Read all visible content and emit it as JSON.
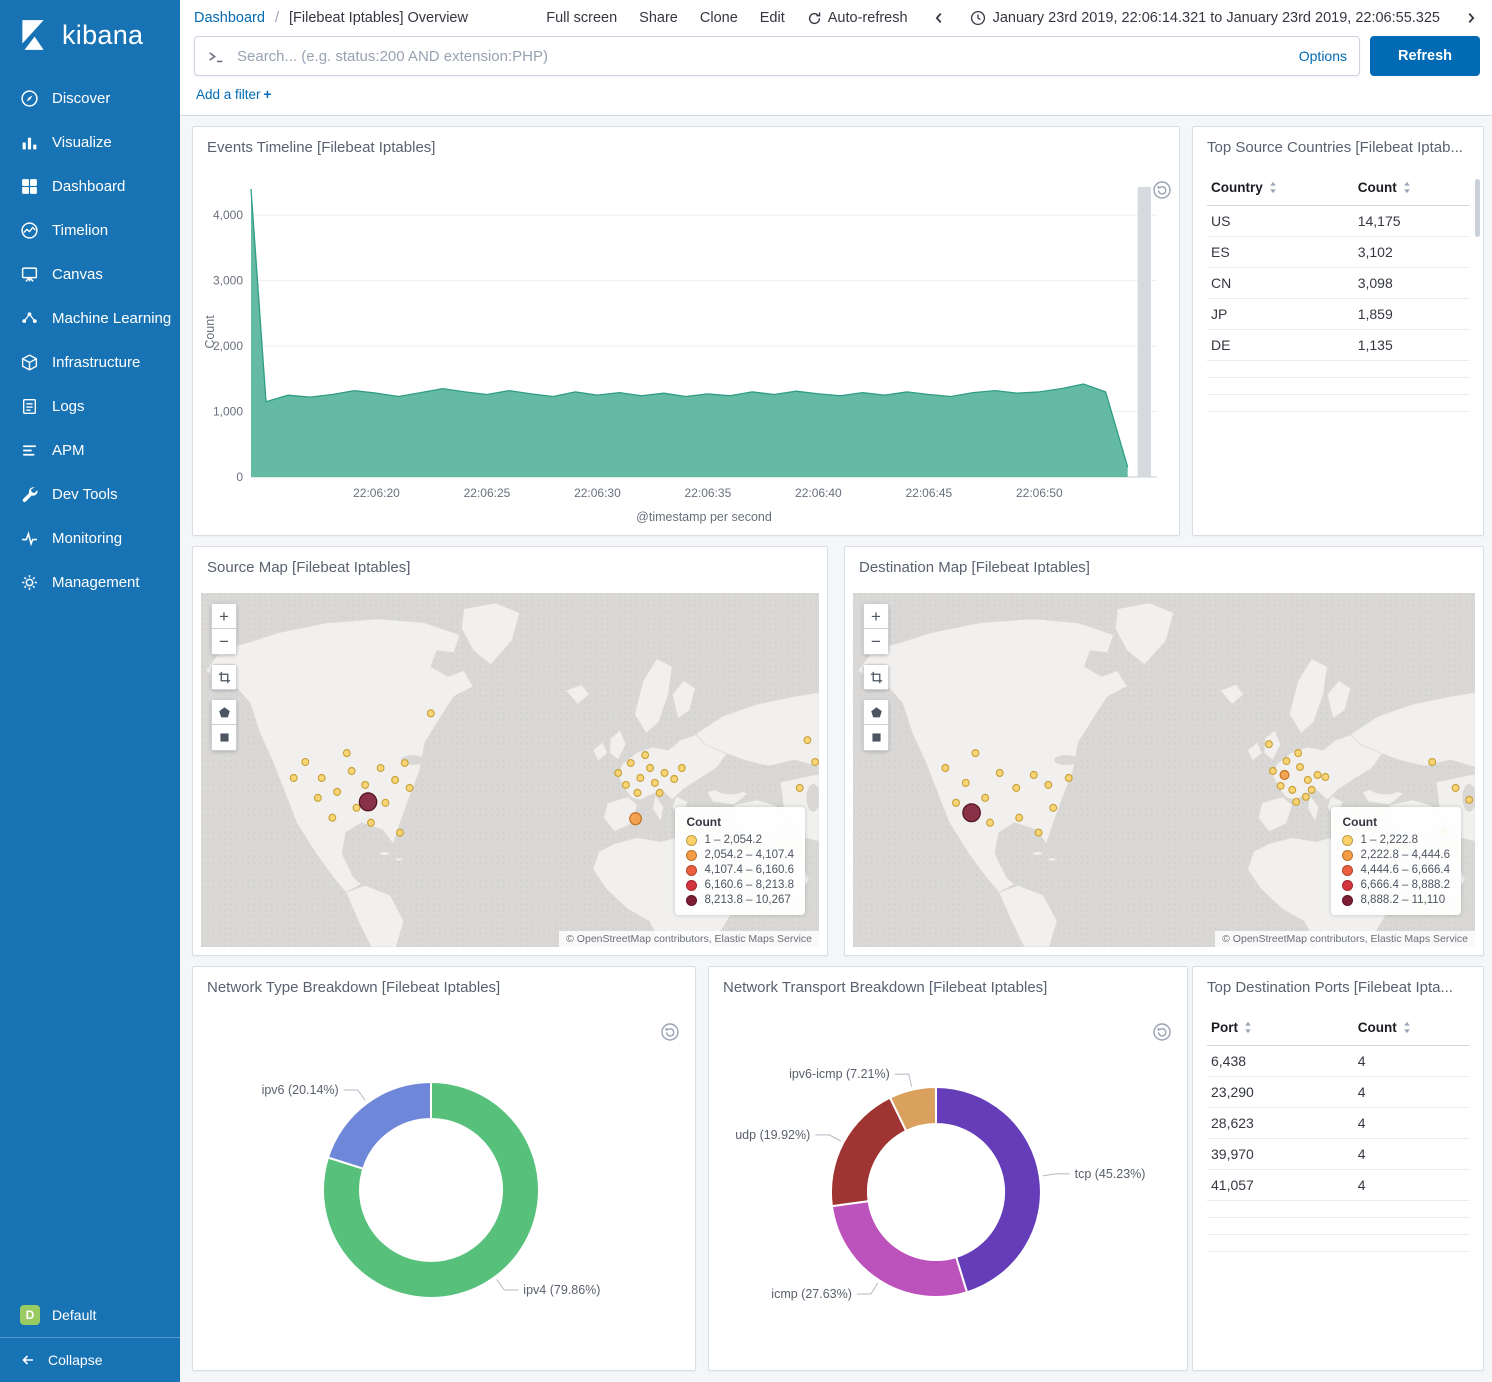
{
  "colors": {
    "sidebar_bg": "#1873b4",
    "primary_blue": "#006bb4",
    "link_blue": "#006bb4",
    "area_fill": "#54b399",
    "dashboard_bg": "#f5f6f8",
    "panel_border": "#d8dde6"
  },
  "sidebar": {
    "logo_text": "kibana",
    "items": [
      {
        "label": "Discover",
        "icon": "compass-icon"
      },
      {
        "label": "Visualize",
        "icon": "bar-chart-icon"
      },
      {
        "label": "Dashboard",
        "icon": "dashboard-grid-icon"
      },
      {
        "label": "Timelion",
        "icon": "timelion-icon"
      },
      {
        "label": "Canvas",
        "icon": "canvas-icon"
      },
      {
        "label": "Machine Learning",
        "icon": "ml-icon"
      },
      {
        "label": "Infrastructure",
        "icon": "infrastructure-icon"
      },
      {
        "label": "Logs",
        "icon": "logs-icon"
      },
      {
        "label": "APM",
        "icon": "apm-icon"
      },
      {
        "label": "Dev Tools",
        "icon": "wrench-icon"
      },
      {
        "label": "Monitoring",
        "icon": "pulse-icon"
      },
      {
        "label": "Management",
        "icon": "gear-icon"
      }
    ],
    "space": {
      "initial": "D",
      "label": "Default"
    },
    "collapse_label": "Collapse"
  },
  "header": {
    "breadcrumb_root": "Dashboard",
    "breadcrumb_separator": "/",
    "breadcrumb_page": "[Filebeat Iptables] Overview",
    "actions": [
      "Full screen",
      "Share",
      "Clone",
      "Edit"
    ],
    "auto_refresh_label": "Auto-refresh",
    "time_range": "January 23rd 2019, 22:06:14.321 to January 23rd 2019, 22:06:55.325"
  },
  "search": {
    "placeholder": "Search... (e.g. status:200 AND extension:PHP)",
    "options_label": "Options",
    "refresh_label": "Refresh"
  },
  "filters": {
    "add_label": "Add a filter",
    "plus": "+"
  },
  "panels": {
    "events_timeline": {
      "title": "Events Timeline [Filebeat Iptables]",
      "chart": {
        "type": "area",
        "color": "#54b399",
        "stroke": "#2f9d85",
        "ylabel": "Count",
        "xlabel": "@timestamp per second",
        "ytick_values": [
          0,
          1000,
          2000,
          3000,
          4000
        ],
        "ytick_labels": [
          "0",
          "1,000",
          "2,000",
          "3,000",
          "4,000"
        ],
        "ymax": 4430,
        "time_start_s": 14.321,
        "time_end_s": 55.325,
        "bucket_start_s": 14,
        "bucket_interval_s": 1,
        "xticks": [
          {
            "s": 20,
            "label": "22:06:20"
          },
          {
            "s": 25,
            "label": "22:06:25"
          },
          {
            "s": 30,
            "label": "22:06:30"
          },
          {
            "s": 35,
            "label": "22:06:35"
          },
          {
            "s": 40,
            "label": "22:06:40"
          },
          {
            "s": 45,
            "label": "22:06:45"
          },
          {
            "s": 50,
            "label": "22:06:50"
          }
        ],
        "values": [
          4400,
          1150,
          1250,
          1220,
          1260,
          1320,
          1280,
          1230,
          1290,
          1350,
          1300,
          1260,
          1320,
          1270,
          1230,
          1300,
          1250,
          1290,
          1240,
          1280,
          1230,
          1270,
          1240,
          1300,
          1260,
          1310,
          1270,
          1240,
          1290,
          1250,
          1300,
          1260,
          1230,
          1290,
          1320,
          1280,
          1300,
          1350,
          1420,
          1300,
          150
        ],
        "partial_bucket_band": [
          54.45,
          55.05
        ]
      }
    },
    "top_source_countries": {
      "title": "Top Source Countries [Filebeat Iptab...",
      "columns": [
        "Country",
        "Count"
      ],
      "rows": [
        [
          "US",
          "14,175"
        ],
        [
          "ES",
          "3,102"
        ],
        [
          "CN",
          "3,098"
        ],
        [
          "JP",
          "1,859"
        ],
        [
          "DE",
          "1,135"
        ]
      ]
    },
    "source_map": {
      "title": "Source Map [Filebeat Iptables]",
      "legend_title": "Count",
      "legend": [
        {
          "label": "1 – 2,054.2",
          "color": "#fbd268"
        },
        {
          "label": "2,054.2 – 4,107.4",
          "color": "#f59b43"
        },
        {
          "label": "4,107.4 – 6,160.6",
          "color": "#ec5e40"
        },
        {
          "label": "6,160.6 – 8,213.8",
          "color": "#d4343d"
        },
        {
          "label": "8,213.8 – 10,267",
          "color": "#7d1d34"
        }
      ],
      "attribution": "© OpenStreetMap contributors, Elastic Maps Service",
      "markers": [
        [
          108,
          170,
          3.5,
          0
        ],
        [
          125,
          186,
          3.5,
          0
        ],
        [
          141,
          200,
          3.5,
          0
        ],
        [
          156,
          179,
          3.5,
          0
        ],
        [
          170,
          193,
          3.5,
          0
        ],
        [
          186,
          176,
          3.5,
          0
        ],
        [
          201,
          188,
          3.5,
          0
        ],
        [
          161,
          216,
          3.5,
          0
        ],
        [
          136,
          226,
          3.5,
          0
        ],
        [
          191,
          211,
          3.5,
          0
        ],
        [
          211,
          171,
          3.5,
          0
        ],
        [
          121,
          206,
          3.5,
          0
        ],
        [
          176,
          231,
          3.5,
          0
        ],
        [
          151,
          161,
          3.5,
          0
        ],
        [
          216,
          196,
          3.5,
          0
        ],
        [
          96,
          186,
          3.5,
          0
        ],
        [
          206,
          241,
          3.5,
          0
        ],
        [
          238,
          121,
          3.5,
          0
        ],
        [
          173,
          210,
          9,
          4
        ],
        [
          432,
          181,
          3.5,
          0
        ],
        [
          445,
          171,
          3.5,
          0
        ],
        [
          455,
          186,
          3.5,
          0
        ],
        [
          465,
          176,
          3.5,
          0
        ],
        [
          470,
          191,
          3.5,
          0
        ],
        [
          452,
          201,
          3.5,
          0
        ],
        [
          480,
          181,
          3.5,
          0
        ],
        [
          440,
          193,
          3.5,
          0
        ],
        [
          460,
          163,
          3.5,
          0
        ],
        [
          475,
          201,
          3.5,
          0
        ],
        [
          490,
          187,
          3.5,
          0
        ],
        [
          498,
          176,
          3.5,
          0
        ],
        [
          450,
          227,
          6,
          1
        ],
        [
          628,
          148,
          3.5,
          0
        ],
        [
          636,
          170,
          3.5,
          0
        ],
        [
          620,
          196,
          3.5,
          0
        ]
      ]
    },
    "destination_map": {
      "title": "Destination Map [Filebeat Iptables]",
      "legend_title": "Count",
      "legend": [
        {
          "label": "1 – 2,222.8",
          "color": "#fbd268"
        },
        {
          "label": "2,222.8 – 4,444.6",
          "color": "#f59b43"
        },
        {
          "label": "4,444.6 – 6,666.4",
          "color": "#ec5e40"
        },
        {
          "label": "6,666.4 – 8,888.2",
          "color": "#d4343d"
        },
        {
          "label": "8,888.2 – 11,110",
          "color": "#7d1d34"
        }
      ],
      "attribution": "© OpenStreetMap contributors, Elastic Maps Service",
      "markers": [
        [
          95,
          176,
          3.5,
          0
        ],
        [
          116,
          191,
          3.5,
          0
        ],
        [
          136,
          206,
          3.5,
          0
        ],
        [
          151,
          181,
          3.5,
          0
        ],
        [
          168,
          196,
          3.5,
          0
        ],
        [
          186,
          183,
          3.5,
          0
        ],
        [
          201,
          193,
          3.5,
          0
        ],
        [
          141,
          231,
          3.5,
          0
        ],
        [
          171,
          226,
          3.5,
          0
        ],
        [
          206,
          216,
          3.5,
          0
        ],
        [
          126,
          161,
          3.5,
          0
        ],
        [
          222,
          186,
          3.5,
          0
        ],
        [
          191,
          241,
          3.5,
          0
        ],
        [
          106,
          211,
          3.5,
          0
        ],
        [
          122,
          221,
          9,
          4
        ],
        [
          432,
          179,
          3.5,
          0
        ],
        [
          446,
          169,
          3.5,
          0
        ],
        [
          460,
          175,
          3.5,
          0
        ],
        [
          468,
          188,
          3.5,
          0
        ],
        [
          452,
          198,
          3.5,
          0
        ],
        [
          478,
          183,
          3.5,
          0
        ],
        [
          440,
          194,
          3.5,
          0
        ],
        [
          458,
          161,
          3.5,
          0
        ],
        [
          472,
          198,
          3.5,
          0
        ],
        [
          486,
          185,
          3.5,
          0
        ],
        [
          456,
          210,
          3.5,
          0
        ],
        [
          466,
          205,
          3.5,
          0
        ],
        [
          428,
          152,
          3.5,
          0
        ],
        [
          444,
          183,
          4.5,
          1
        ],
        [
          620,
          196,
          3.5,
          0
        ],
        [
          634,
          208,
          3.5,
          0
        ],
        [
          610,
          240,
          3.5,
          0
        ],
        [
          596,
          170,
          3.5,
          0
        ]
      ]
    },
    "network_type": {
      "title": "Network Type Breakdown [Filebeat Iptables]",
      "chart": {
        "type": "pie",
        "slices": [
          {
            "label": "ipv4 (79.86%)",
            "value": 79.86,
            "color": "#57c17b"
          },
          {
            "label": "ipv6 (20.14%)",
            "value": 20.14,
            "color": "#6f87d8"
          }
        ]
      }
    },
    "network_transport": {
      "title": "Network Transport Breakdown [Filebeat Iptables]",
      "chart": {
        "type": "pie",
        "slices": [
          {
            "label": "tcp (45.23%)",
            "value": 45.23,
            "color": "#663db8"
          },
          {
            "label": "icmp (27.63%)",
            "value": 27.63,
            "color": "#bc52bc"
          },
          {
            "label": "udp (19.92%)",
            "value": 19.92,
            "color": "#9e3533"
          },
          {
            "label": "ipv6-icmp (7.21%)",
            "value": 7.21,
            "color": "#daa05d"
          }
        ]
      }
    },
    "top_destination_ports": {
      "title": "Top Destination Ports [Filebeat Ipta...",
      "columns": [
        "Port",
        "Count"
      ],
      "rows": [
        [
          "6,438",
          "4"
        ],
        [
          "23,290",
          "4"
        ],
        [
          "28,623",
          "4"
        ],
        [
          "39,970",
          "4"
        ],
        [
          "41,057",
          "4"
        ]
      ]
    }
  }
}
